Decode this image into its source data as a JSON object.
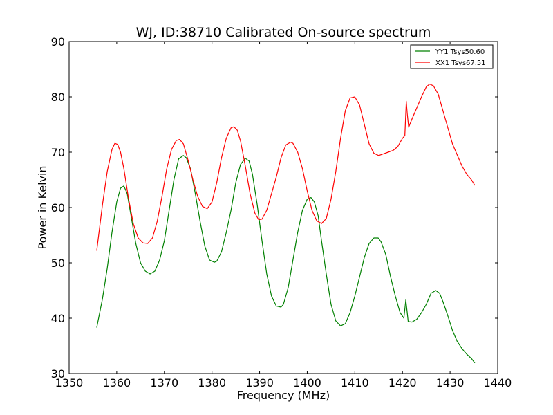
{
  "chart_data": {
    "type": "line",
    "title": "WJ, ID:38710 Calibrated On-source spectrum",
    "xlabel": "Frequency (MHz)",
    "ylabel": "Power in Kelvin",
    "xlim": [
      1350,
      1440
    ],
    "ylim": [
      30,
      90
    ],
    "xticks": [
      1350,
      1360,
      1370,
      1380,
      1390,
      1400,
      1410,
      1420,
      1430,
      1440
    ],
    "yticks": [
      30,
      40,
      50,
      60,
      70,
      80,
      90
    ],
    "xtick_labels": [
      "1350",
      "1360",
      "1370",
      "1380",
      "1390",
      "1400",
      "1410",
      "1420",
      "1430",
      "1440"
    ],
    "ytick_labels": [
      "30",
      "40",
      "50",
      "60",
      "70",
      "80",
      "90"
    ],
    "grid": false,
    "legend_position": "top-right",
    "series": [
      {
        "name": "YY1 Tsys50.60",
        "color": "#008000",
        "x": [
          1355.8,
          1357.0,
          1358.0,
          1359.0,
          1360.0,
          1360.8,
          1361.5,
          1362.2,
          1363.0,
          1364.0,
          1365.0,
          1366.0,
          1367.0,
          1368.0,
          1369.0,
          1370.0,
          1371.0,
          1372.0,
          1373.0,
          1374.0,
          1374.6,
          1375.5,
          1376.5,
          1377.5,
          1378.5,
          1379.5,
          1380.5,
          1381.0,
          1382.0,
          1383.0,
          1384.0,
          1385.0,
          1386.0,
          1387.0,
          1387.8,
          1388.5,
          1389.5,
          1390.5,
          1391.5,
          1392.5,
          1393.5,
          1394.5,
          1395.0,
          1396.0,
          1397.0,
          1398.0,
          1399.0,
          1400.0,
          1400.8,
          1401.5,
          1402.3,
          1403.0,
          1404.0,
          1405.0,
          1406.0,
          1407.0,
          1408.0,
          1409.0,
          1410.0,
          1411.0,
          1412.0,
          1413.0,
          1414.0,
          1414.9,
          1415.5,
          1416.5,
          1417.5,
          1418.5,
          1419.5,
          1420.3,
          1420.7,
          1421.0,
          1421.2,
          1422.0,
          1423.0,
          1424.0,
          1425.0,
          1426.0,
          1427.0,
          1427.8,
          1428.5,
          1429.5,
          1430.5,
          1431.5,
          1432.5,
          1433.5,
          1434.5,
          1435.2
        ],
        "values": [
          38.3,
          43.5,
          49.0,
          55.5,
          61.0,
          63.5,
          63.9,
          62.5,
          58.5,
          53.5,
          50.0,
          48.5,
          48.0,
          48.5,
          50.5,
          54.0,
          59.5,
          65.0,
          68.8,
          69.4,
          69.0,
          67.0,
          62.5,
          57.5,
          53.0,
          50.5,
          50.1,
          50.3,
          52.0,
          55.5,
          59.5,
          64.5,
          67.8,
          68.9,
          68.4,
          66.0,
          60.5,
          54.0,
          48.0,
          44.0,
          42.2,
          42.0,
          42.5,
          45.5,
          50.5,
          55.5,
          59.5,
          61.5,
          61.8,
          61.0,
          58.5,
          54.0,
          48.0,
          42.5,
          39.5,
          38.6,
          39.0,
          41.0,
          44.0,
          47.5,
          51.0,
          53.5,
          54.5,
          54.5,
          53.8,
          51.5,
          47.5,
          44.0,
          41.0,
          40.0,
          43.3,
          41.0,
          39.4,
          39.3,
          39.8,
          41.0,
          42.5,
          44.5,
          45.0,
          44.5,
          43.0,
          40.5,
          37.8,
          35.8,
          34.5,
          33.5,
          32.7,
          31.9
        ]
      },
      {
        "name": "XX1 Tsys67.51",
        "color": "#ff0000",
        "x": [
          1355.8,
          1357.0,
          1358.0,
          1359.0,
          1359.6,
          1360.2,
          1360.8,
          1361.5,
          1362.5,
          1363.5,
          1364.5,
          1365.5,
          1366.5,
          1367.5,
          1368.5,
          1369.5,
          1370.5,
          1371.5,
          1372.5,
          1373.2,
          1374.0,
          1375.0,
          1376.0,
          1377.0,
          1378.0,
          1379.0,
          1380.0,
          1381.0,
          1382.0,
          1383.0,
          1384.0,
          1384.6,
          1385.3,
          1386.0,
          1387.0,
          1388.0,
          1389.0,
          1389.8,
          1390.5,
          1391.5,
          1392.5,
          1393.5,
          1394.5,
          1395.5,
          1396.5,
          1397.0,
          1398.0,
          1399.0,
          1400.0,
          1401.0,
          1402.0,
          1403.0,
          1404.0,
          1405.0,
          1406.0,
          1407.0,
          1408.0,
          1409.0,
          1410.0,
          1411.0,
          1412.0,
          1413.0,
          1414.0,
          1415.0,
          1416.0,
          1417.0,
          1418.0,
          1419.0,
          1420.0,
          1420.5,
          1420.8,
          1421.0,
          1421.3,
          1422.0,
          1423.0,
          1424.0,
          1425.0,
          1425.7,
          1426.5,
          1427.5,
          1428.5,
          1429.5,
          1430.5,
          1431.5,
          1432.5,
          1433.5,
          1434.5,
          1435.2
        ],
        "values": [
          52.2,
          60.5,
          66.5,
          70.5,
          71.6,
          71.4,
          70.0,
          67.0,
          61.5,
          57.0,
          54.5,
          53.6,
          53.5,
          54.5,
          57.5,
          62.0,
          67.0,
          70.5,
          72.1,
          72.3,
          71.5,
          68.5,
          65.0,
          62.0,
          60.2,
          59.8,
          61.0,
          64.5,
          69.0,
          72.5,
          74.4,
          74.6,
          74.0,
          72.0,
          67.5,
          62.5,
          59.0,
          57.8,
          57.9,
          59.5,
          62.5,
          65.5,
          69.0,
          71.3,
          71.8,
          71.6,
          70.0,
          67.0,
          63.0,
          59.5,
          57.6,
          57.1,
          58.0,
          61.5,
          66.5,
          72.5,
          77.5,
          79.8,
          80.0,
          78.5,
          75.0,
          71.5,
          69.8,
          69.4,
          69.7,
          70.0,
          70.3,
          71.0,
          72.5,
          73.0,
          79.2,
          77.0,
          74.5,
          76.0,
          78.0,
          80.0,
          81.8,
          82.3,
          82.0,
          80.5,
          77.5,
          74.5,
          71.5,
          69.5,
          67.5,
          66.0,
          65.0,
          64.0
        ]
      }
    ]
  }
}
